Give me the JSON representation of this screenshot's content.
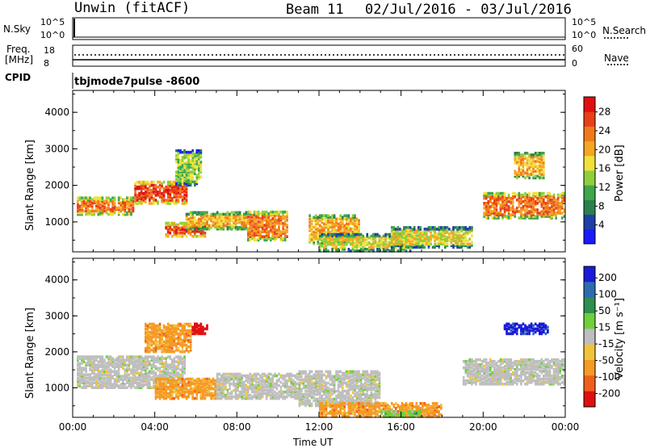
{
  "header": {
    "station": "Unwin (fitACF)",
    "beam": "Beam 11",
    "date_range": "02/Jul/2016 - 03/Jul/2016"
  },
  "noise_panel": {
    "left_label": "N.Sky",
    "left_ticks": [
      "10^5",
      "10^0"
    ],
    "right_ticks": [
      "10^5",
      "10^0"
    ],
    "right_label": "N.Search"
  },
  "freq_panel": {
    "left_label_1": "Freq.",
    "left_label_2": "[MHz]",
    "left_ticks": [
      "18",
      "8"
    ],
    "right_ticks": [
      "60",
      "0"
    ],
    "right_label": "Nave"
  },
  "cpid": {
    "label": "CPID",
    "value": "tbjmode7pulse  -8600"
  },
  "chart_data": [
    {
      "type": "heatmap",
      "title": "",
      "ylabel": "Slant Range [km]",
      "xlabel": "",
      "x_tick_labels": [
        "00:00",
        "04:00",
        "08:00",
        "12:00",
        "16:00",
        "20:00",
        "00:00"
      ],
      "x_range_hours": [
        0,
        24
      ],
      "y_ticks": [
        1000,
        2000,
        3000,
        4000
      ],
      "y_tick_labels": [
        "1000",
        "2000",
        "3000",
        "4000"
      ],
      "ylim": [
        180,
        4600
      ],
      "colorbar": {
        "label": "Power [dB]",
        "ticks": [
          "4",
          "8",
          "12",
          "16",
          "20",
          "24",
          "28"
        ],
        "colors": [
          "#1a1aff",
          "#1e3fa8",
          "#2e7f4f",
          "#3fa64a",
          "#8fcf3c",
          "#f0e13a",
          "#f5a623",
          "#f07a1a",
          "#e8401a",
          "#e01010"
        ]
      },
      "echo_regions": [
        {
          "t0": 0.2,
          "t1": 3.0,
          "r0": 1200,
          "r1": 1700,
          "level": 7
        },
        {
          "t0": 3.0,
          "t1": 5.6,
          "r0": 1500,
          "r1": 2150,
          "level": 8
        },
        {
          "t0": 5.0,
          "t1": 6.3,
          "r0": 2000,
          "r1": 3000,
          "level": 4
        },
        {
          "t0": 4.5,
          "t1": 6.5,
          "r0": 600,
          "r1": 1000,
          "level": 8
        },
        {
          "t0": 5.5,
          "t1": 8.5,
          "r0": 800,
          "r1": 1300,
          "level": 6
        },
        {
          "t0": 8.5,
          "t1": 10.5,
          "r0": 500,
          "r1": 1300,
          "level": 7
        },
        {
          "t0": 11.5,
          "t1": 14.0,
          "r0": 400,
          "r1": 1200,
          "level": 6
        },
        {
          "t0": 12.0,
          "t1": 16.5,
          "r0": 200,
          "r1": 700,
          "level": 5
        },
        {
          "t0": 15.5,
          "t1": 19.5,
          "r0": 300,
          "r1": 900,
          "level": 5
        },
        {
          "t0": 20.0,
          "t1": 24.0,
          "r0": 1100,
          "r1": 1800,
          "level": 7
        },
        {
          "t0": 21.5,
          "t1": 23.0,
          "r0": 2200,
          "r1": 2900,
          "level": 6
        }
      ]
    },
    {
      "type": "heatmap",
      "title": "",
      "ylabel": "Slant Range [km]",
      "xlabel": "Time UT",
      "x_tick_labels": [
        "00:00",
        "04:00",
        "08:00",
        "12:00",
        "16:00",
        "20:00",
        "00:00"
      ],
      "x_range_hours": [
        0,
        24
      ],
      "y_ticks": [
        1000,
        2000,
        3000,
        4000
      ],
      "y_tick_labels": [
        "1000",
        "2000",
        "3000",
        "4000"
      ],
      "ylim": [
        180,
        4600
      ],
      "colorbar": {
        "label": "Velocity [m s⁻¹]",
        "ticks": [
          "200",
          "100",
          "50",
          "15",
          "-15",
          "-50",
          "-100",
          "-200"
        ],
        "colors": [
          "#1a1ad8",
          "#2d6bb0",
          "#2e8f4f",
          "#6fcf3c",
          "#bebebe",
          "#f0c43a",
          "#f59a23",
          "#f0601a",
          "#e01010"
        ]
      },
      "echo_regions": [
        {
          "t0": 0.2,
          "t1": 5.5,
          "r0": 1000,
          "r1": 1900,
          "level": "gray"
        },
        {
          "t0": 3.5,
          "t1": 5.8,
          "r0": 2000,
          "r1": 2800,
          "level": "orange"
        },
        {
          "t0": 5.8,
          "t1": 6.6,
          "r0": 2500,
          "r1": 2800,
          "level": "red"
        },
        {
          "t0": 4.0,
          "t1": 7.0,
          "r0": 700,
          "r1": 1300,
          "level": "orange"
        },
        {
          "t0": 7.0,
          "t1": 11.0,
          "r0": 700,
          "r1": 1400,
          "level": "gray"
        },
        {
          "t0": 11.0,
          "t1": 15.0,
          "r0": 500,
          "r1": 1500,
          "level": "gray"
        },
        {
          "t0": 12.0,
          "t1": 18.0,
          "r0": 200,
          "r1": 600,
          "level": "orange"
        },
        {
          "t0": 15.0,
          "t1": 17.0,
          "r0": 200,
          "r1": 400,
          "level": "green"
        },
        {
          "t0": 19.0,
          "t1": 24.0,
          "r0": 1100,
          "r1": 1800,
          "level": "gray"
        },
        {
          "t0": 21.0,
          "t1": 23.2,
          "r0": 2500,
          "r1": 2800,
          "level": "blue"
        }
      ]
    }
  ]
}
